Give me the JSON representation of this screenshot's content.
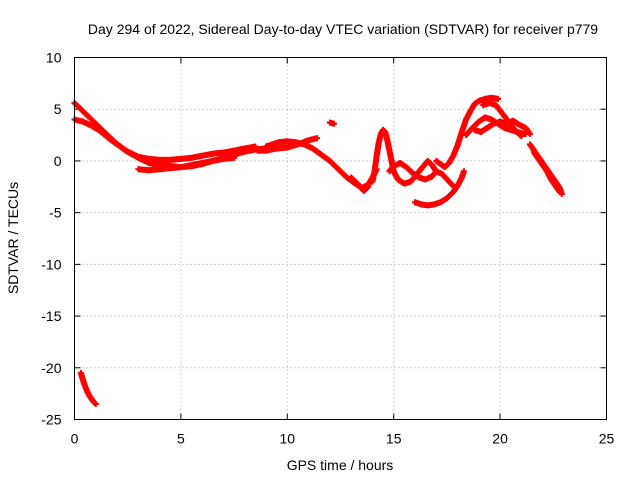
{
  "chart_data": {
    "type": "scatter",
    "title": "Day 294 of 2022, Sidereal Day-to-day VTEC variation (SDTVAR) for receiver p779",
    "xlabel": "GPS time / hours",
    "ylabel": "SDTVAR / TECUs",
    "xlim": [
      0,
      25
    ],
    "ylim": [
      -25,
      10
    ],
    "xticks": [
      0,
      5,
      10,
      15,
      20,
      25
    ],
    "yticks": [
      -25,
      -20,
      -15,
      -10,
      -5,
      0,
      5,
      10
    ],
    "xtick_labels": [
      "0",
      "5",
      "10",
      "15",
      "20",
      "25"
    ],
    "ytick_labels": [
      "-25",
      "-20",
      "-15",
      "-10",
      "-5",
      "0",
      "5",
      "10"
    ],
    "grid": true,
    "marker": "plus",
    "series": [
      {
        "name": "SDTVAR",
        "color": "#ff0000",
        "segments": [
          {
            "points": [
              [
                0.0,
                5.6
              ],
              [
                0.3,
                5.0
              ],
              [
                0.6,
                4.4
              ],
              [
                1.0,
                3.6
              ],
              [
                1.4,
                2.8
              ],
              [
                1.9,
                1.8
              ],
              [
                2.4,
                1.0
              ],
              [
                3.0,
                0.3
              ],
              [
                3.5,
                -0.2
              ],
              [
                4.0,
                -0.4
              ],
              [
                4.5,
                -0.5
              ],
              [
                5.0,
                -0.6
              ],
              [
                5.5,
                -0.5
              ],
              [
                6.0,
                -0.3
              ],
              [
                6.5,
                0.0
              ],
              [
                7.0,
                0.3
              ],
              [
                7.5,
                0.6
              ],
              [
                8.0,
                0.9
              ],
              [
                8.5,
                1.1
              ],
              [
                9.0,
                1.2
              ]
            ]
          },
          {
            "points": [
              [
                0.0,
                4.0
              ],
              [
                0.4,
                3.8
              ],
              [
                0.8,
                3.4
              ],
              [
                1.2,
                2.9
              ],
              [
                1.6,
                2.2
              ],
              [
                2.0,
                1.6
              ],
              [
                2.5,
                0.9
              ],
              [
                3.0,
                0.4
              ],
              [
                3.5,
                0.2
              ],
              [
                4.0,
                0.1
              ],
              [
                4.5,
                0.1
              ],
              [
                5.0,
                0.2
              ],
              [
                5.5,
                0.3
              ],
              [
                6.0,
                0.5
              ],
              [
                6.5,
                0.7
              ],
              [
                7.0,
                0.8
              ],
              [
                7.5,
                1.0
              ],
              [
                8.0,
                1.2
              ],
              [
                8.5,
                1.4
              ]
            ]
          },
          {
            "points": [
              [
                3.0,
                -0.8
              ],
              [
                3.5,
                -0.9
              ],
              [
                4.0,
                -0.8
              ],
              [
                4.5,
                -0.7
              ],
              [
                5.0,
                -0.6
              ],
              [
                5.5,
                -0.4
              ],
              [
                6.0,
                -0.2
              ],
              [
                6.5,
                0.0
              ],
              [
                7.0,
                0.2
              ],
              [
                7.5,
                0.3
              ]
            ]
          },
          {
            "points": [
              [
                9.0,
                1.4
              ],
              [
                9.3,
                1.6
              ],
              [
                9.6,
                1.8
              ],
              [
                10.0,
                1.9
              ],
              [
                10.4,
                1.8
              ],
              [
                10.8,
                1.6
              ],
              [
                11.2,
                1.2
              ],
              [
                11.6,
                0.6
              ],
              [
                12.0,
                0.0
              ],
              [
                12.4,
                -0.8
              ],
              [
                12.8,
                -1.6
              ],
              [
                13.2,
                -2.2
              ],
              [
                13.5,
                -2.6
              ],
              [
                13.8,
                -2.3
              ],
              [
                14.0,
                -1.6
              ],
              [
                14.2,
                -0.8
              ]
            ]
          },
          {
            "points": [
              [
                8.6,
                1.0
              ],
              [
                9.0,
                1.0
              ],
              [
                9.5,
                1.2
              ],
              [
                10.0,
                1.3
              ],
              [
                10.5,
                1.6
              ],
              [
                11.0,
                2.0
              ],
              [
                11.4,
                2.2
              ]
            ]
          },
          {
            "points": [
              [
                12.0,
                3.7
              ],
              [
                12.2,
                3.6
              ]
            ]
          },
          {
            "points": [
              [
                13.0,
                -1.6
              ],
              [
                13.2,
                -2.0
              ],
              [
                13.4,
                -2.4
              ],
              [
                13.6,
                -2.9
              ],
              [
                13.8,
                -2.5
              ]
            ]
          },
          {
            "points": [
              [
                14.0,
                -2.0
              ],
              [
                14.1,
                -1.0
              ],
              [
                14.2,
                0.5
              ],
              [
                14.3,
                1.8
              ],
              [
                14.4,
                2.6
              ],
              [
                14.5,
                3.0
              ],
              [
                14.6,
                2.8
              ],
              [
                14.7,
                2.0
              ],
              [
                14.8,
                1.0
              ],
              [
                14.9,
                0.0
              ],
              [
                15.0,
                -1.0
              ],
              [
                15.2,
                -1.8
              ],
              [
                15.5,
                -2.2
              ],
              [
                15.8,
                -2.0
              ],
              [
                16.0,
                -1.5
              ],
              [
                16.2,
                -1.0
              ],
              [
                16.4,
                -0.5
              ],
              [
                16.6,
                0.0
              ],
              [
                16.8,
                -0.4
              ],
              [
                17.0,
                -1.0
              ]
            ]
          },
          {
            "points": [
              [
                14.8,
                -1.0
              ],
              [
                15.0,
                -0.5
              ],
              [
                15.3,
                -0.2
              ],
              [
                15.6,
                -0.6
              ],
              [
                15.9,
                -1.2
              ],
              [
                16.2,
                -1.6
              ],
              [
                16.5,
                -1.8
              ],
              [
                16.8,
                -1.5
              ],
              [
                17.0,
                -1.0
              ],
              [
                17.3,
                -1.3
              ],
              [
                17.6,
                -2.0
              ],
              [
                17.8,
                -2.4
              ]
            ]
          },
          {
            "points": [
              [
                16.0,
                -4.0
              ],
              [
                16.3,
                -4.2
              ],
              [
                16.6,
                -4.3
              ],
              [
                16.9,
                -4.2
              ],
              [
                17.2,
                -4.0
              ],
              [
                17.5,
                -3.6
              ],
              [
                17.8,
                -3.0
              ],
              [
                18.0,
                -2.4
              ],
              [
                18.2,
                -1.6
              ],
              [
                18.3,
                -1.0
              ]
            ]
          },
          {
            "points": [
              [
                17.0,
                0.0
              ],
              [
                17.2,
                -0.3
              ],
              [
                17.4,
                -0.6
              ],
              [
                17.6,
                -0.2
              ],
              [
                17.8,
                0.5
              ],
              [
                18.0,
                1.5
              ],
              [
                18.2,
                2.8
              ],
              [
                18.4,
                4.0
              ],
              [
                18.6,
                4.8
              ],
              [
                18.8,
                5.5
              ],
              [
                19.0,
                5.8
              ],
              [
                19.3,
                6.0
              ],
              [
                19.6,
                6.1
              ],
              [
                19.9,
                6.0
              ]
            ]
          },
          {
            "points": [
              [
                18.4,
                2.5
              ],
              [
                18.7,
                3.2
              ],
              [
                19.0,
                3.8
              ],
              [
                19.3,
                4.2
              ],
              [
                19.6,
                4.0
              ],
              [
                19.9,
                3.6
              ],
              [
                20.2,
                3.2
              ],
              [
                20.5,
                3.0
              ],
              [
                20.8,
                2.8
              ],
              [
                21.2,
                2.6
              ]
            ]
          },
          {
            "points": [
              [
                18.8,
                3.0
              ],
              [
                19.1,
                2.8
              ],
              [
                19.4,
                3.2
              ],
              [
                19.7,
                3.6
              ],
              [
                20.0,
                3.8
              ],
              [
                20.3,
                3.6
              ],
              [
                20.6,
                3.9
              ],
              [
                20.9,
                3.5
              ],
              [
                21.2,
                3.2
              ],
              [
                21.4,
                2.6
              ]
            ]
          },
          {
            "points": [
              [
                19.2,
                5.4
              ],
              [
                19.5,
                5.6
              ],
              [
                19.8,
                5.4
              ],
              [
                20.1,
                4.6
              ],
              [
                20.4,
                3.8
              ],
              [
                20.7,
                3.0
              ],
              [
                21.0,
                2.4
              ]
            ]
          },
          {
            "points": [
              [
                21.4,
                1.6
              ],
              [
                21.6,
                1.0
              ],
              [
                21.8,
                0.4
              ],
              [
                22.0,
                -0.2
              ],
              [
                22.2,
                -0.8
              ],
              [
                22.4,
                -1.4
              ],
              [
                22.6,
                -2.0
              ],
              [
                22.8,
                -2.6
              ],
              [
                22.9,
                -3.2
              ]
            ]
          },
          {
            "points": [
              [
                21.6,
                0.8
              ],
              [
                21.8,
                0.2
              ],
              [
                22.0,
                -0.4
              ],
              [
                22.2,
                -1.0
              ],
              [
                22.4,
                -1.8
              ],
              [
                22.6,
                -2.4
              ],
              [
                22.8,
                -3.0
              ]
            ]
          },
          {
            "points": [
              [
                0.3,
                -20.5
              ],
              [
                0.4,
                -21.2
              ],
              [
                0.5,
                -21.8
              ],
              [
                0.6,
                -22.3
              ],
              [
                0.7,
                -22.7
              ],
              [
                0.8,
                -23.0
              ],
              [
                0.9,
                -23.3
              ],
              [
                1.0,
                -23.5
              ]
            ]
          }
        ]
      }
    ]
  }
}
